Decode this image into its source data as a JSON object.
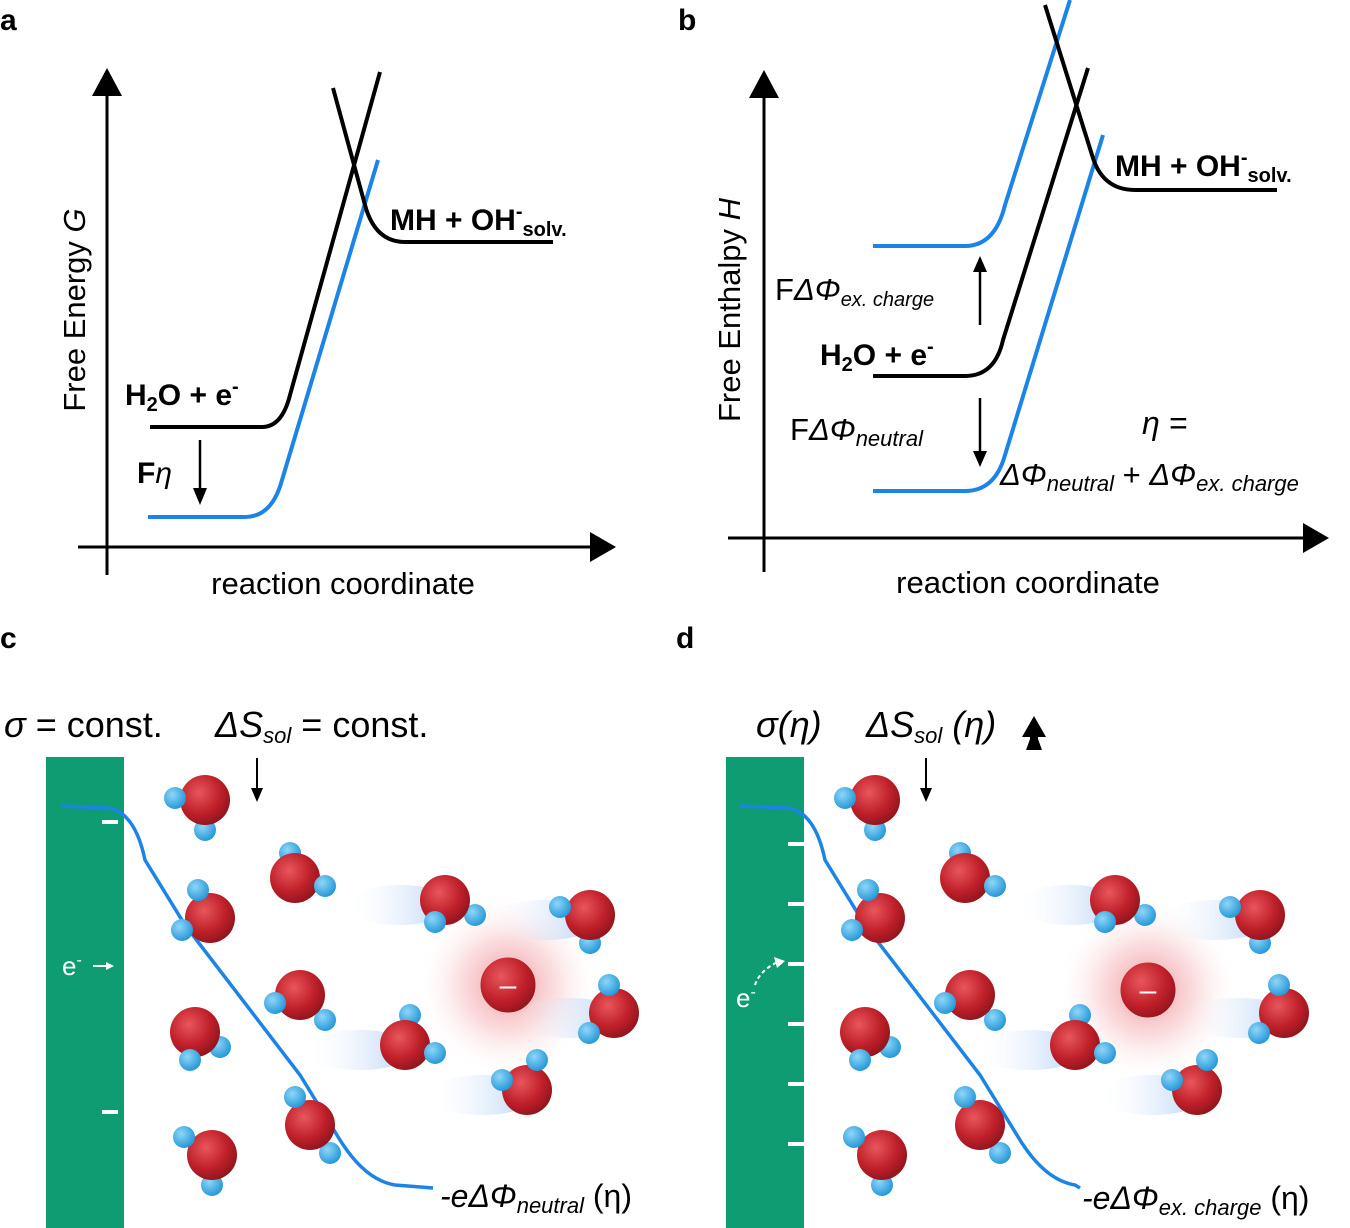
{
  "panels": {
    "a": {
      "label": "a",
      "y_axis_label": "Free Energy ",
      "y_axis_symbol": "G",
      "x_axis_label": "reaction coordinate",
      "reactant": {
        "h": "H",
        "sub2": "2",
        "o": "O + e",
        "sup": "-"
      },
      "product": {
        "main": "MH + OH",
        "sup": "-",
        "sub": "solv."
      },
      "shift": {
        "f": "F",
        "eta": "η"
      }
    },
    "b": {
      "label": "b",
      "y_axis_label": "Free Enthalpy ",
      "y_axis_symbol": "H",
      "x_axis_label": "reaction coordinate",
      "reactant": {
        "h": "H",
        "sub2": "2",
        "o": "O + e",
        "sup": "-"
      },
      "product": {
        "main": "MH + OH",
        "sup": "-",
        "sub": "solv."
      },
      "excess_term": {
        "f": "F",
        "dphi": "ΔΦ",
        "sub": "ex. charge"
      },
      "neutral_term": {
        "f": "F",
        "dphi": "ΔΦ",
        "sub": "neutral"
      },
      "eta_eq": "η =",
      "sum": {
        "dphi1": "ΔΦ",
        "sub1": "neutral",
        "plus": " + ",
        "dphi2": "ΔΦ",
        "sub2": "ex. charge"
      }
    },
    "c": {
      "label": "c",
      "sigma": "σ",
      "sigma_text": " = const.",
      "ds": "ΔS",
      "ds_sub": "sol",
      "ds_text": " = const.",
      "electron": "e",
      "electron_sup": "-",
      "minus": "–",
      "potential": {
        "pre": "-eΔΦ",
        "sub": "neutral",
        "post": " (η)"
      }
    },
    "d": {
      "label": "d",
      "sigma": "σ(η)",
      "ds": "ΔS",
      "ds_sub": "sol",
      "ds_text": " (η)",
      "electron": "e",
      "electron_sup": "-",
      "minus": "–",
      "potential": {
        "pre": "-eΔΦ",
        "sub": "ex. charge",
        "post": " (η)"
      }
    }
  },
  "colors": {
    "blue": "#1b84e6",
    "black": "#000000",
    "electrode": "#0e9c72",
    "oxygen": "#c0202a",
    "hydrogen": "#3aaee6"
  }
}
